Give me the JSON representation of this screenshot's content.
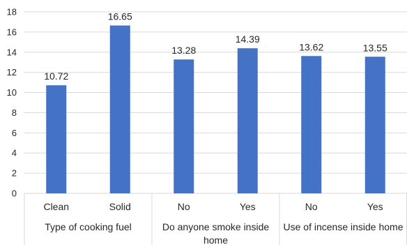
{
  "chart_data": {
    "type": "bar",
    "categories": [
      "Clean",
      "Solid",
      "No",
      "Yes",
      "No",
      "Yes"
    ],
    "groups": [
      {
        "label_lines": [
          "Type of cooking fuel"
        ],
        "count": 2
      },
      {
        "label_lines": [
          "Do anyone smoke inside",
          "home"
        ],
        "count": 2
      },
      {
        "label_lines": [
          "Use of incense inside home"
        ],
        "count": 2
      }
    ],
    "values": [
      10.72,
      16.65,
      13.28,
      14.39,
      13.62,
      13.55
    ],
    "value_labels": [
      "10.72",
      "16.65",
      "13.28",
      "14.39",
      "13.62",
      "13.55"
    ],
    "yticks": [
      "0",
      "2",
      "4",
      "6",
      "8",
      "10",
      "12",
      "14",
      "16",
      "18"
    ],
    "ylim": [
      0,
      18
    ],
    "grid": true,
    "bar_color": "#4472c4",
    "grid_color": "#d9d9d9"
  }
}
